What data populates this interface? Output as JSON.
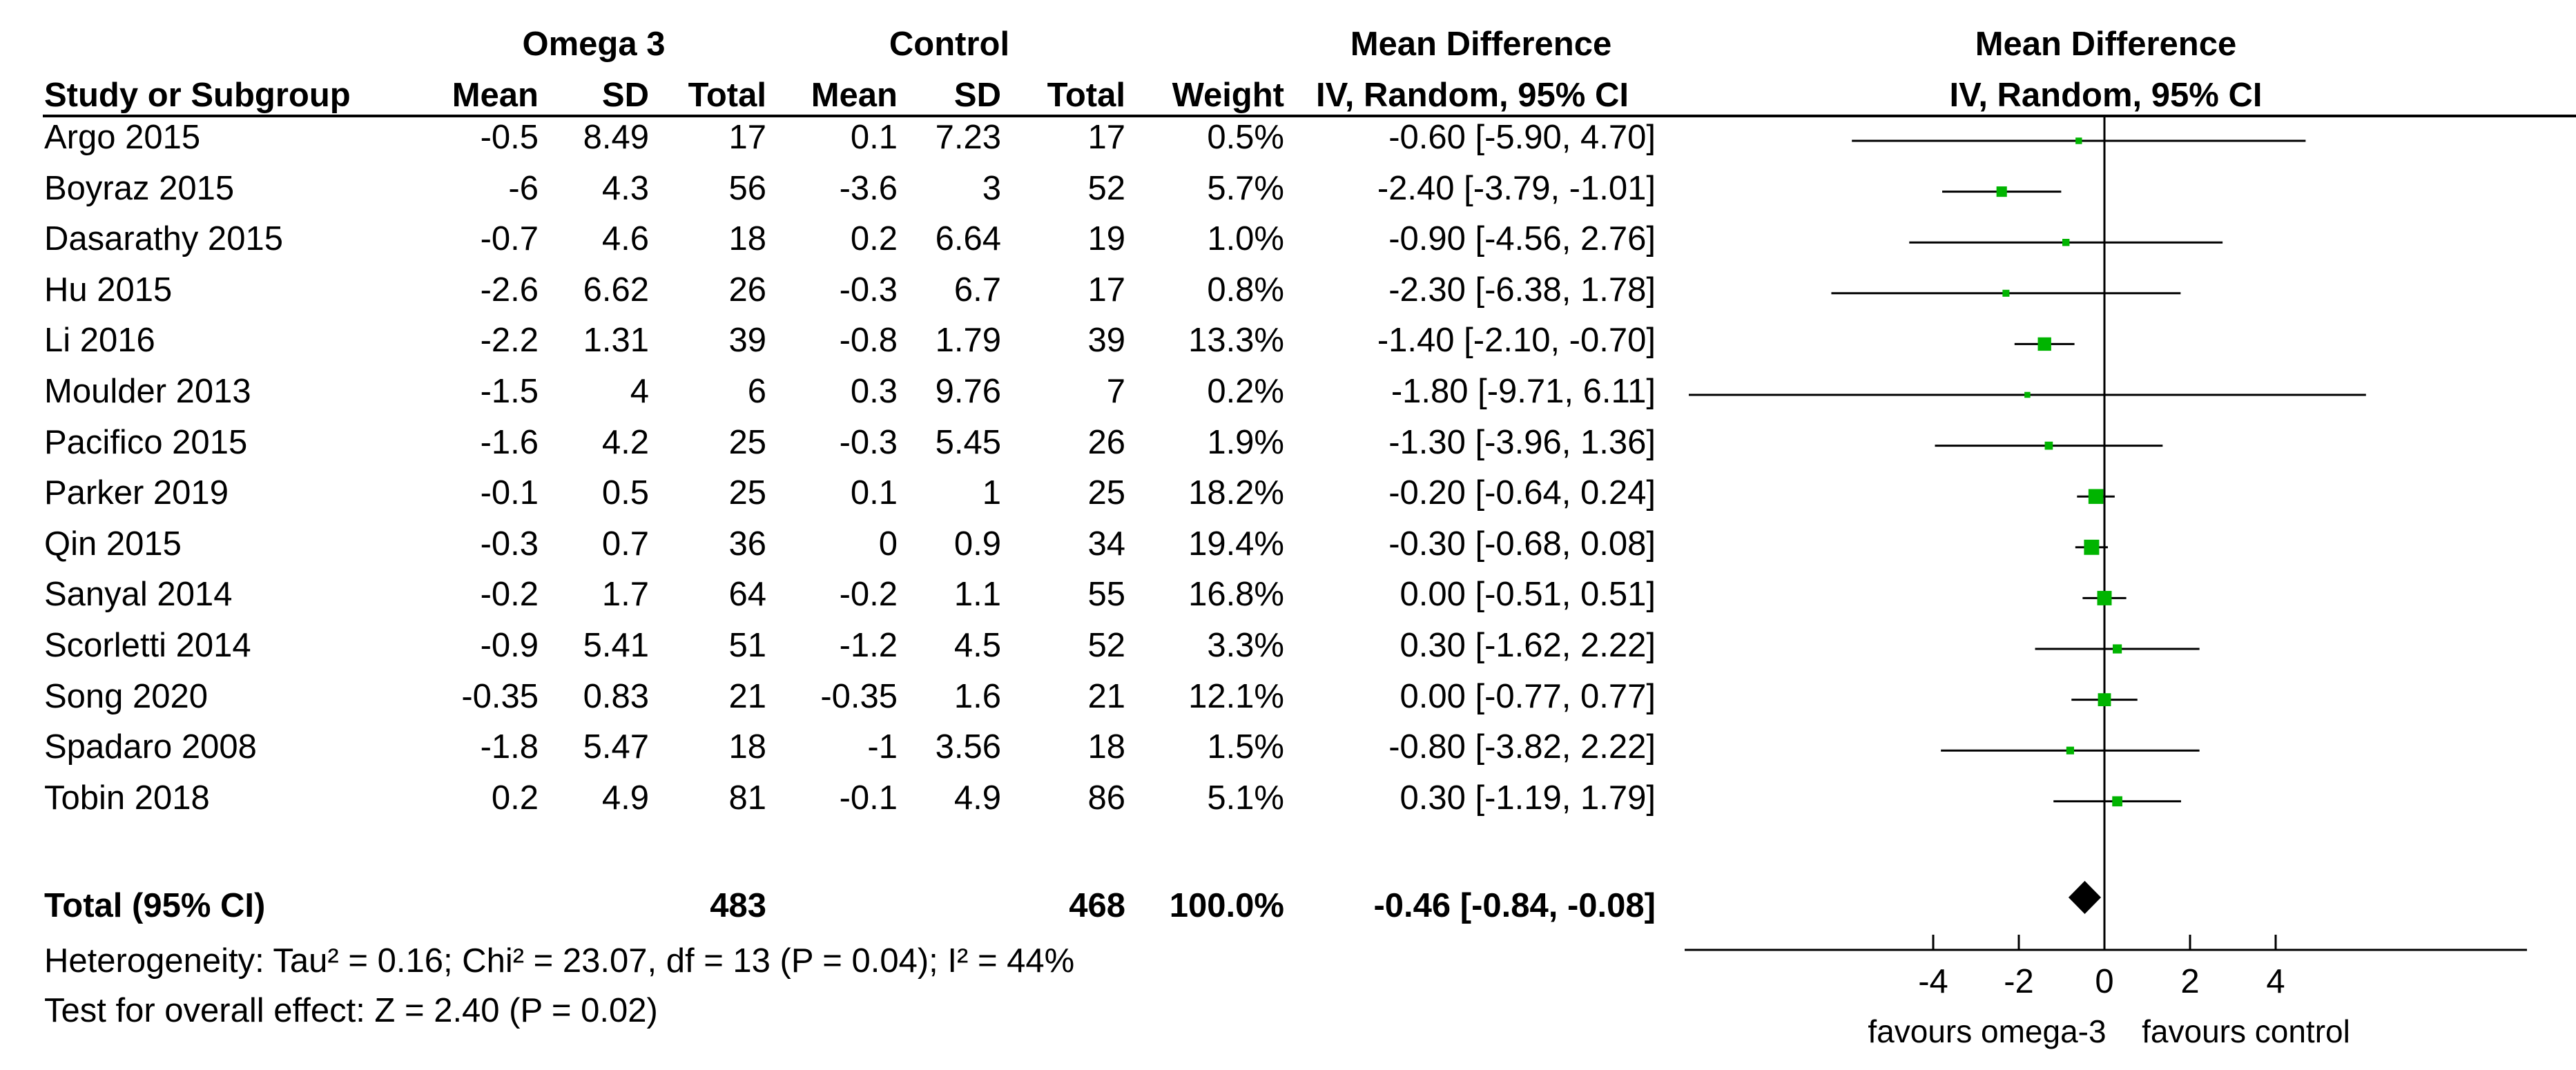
{
  "header": {
    "group1": "Omega 3",
    "group2": "Control",
    "effect_title": "Mean Difference",
    "plot_title": "Mean Difference",
    "plot_subtitle": "IV, Random, 95% CI",
    "col_study": "Study or Subgroup",
    "col_mean1": "Mean",
    "col_sd1": "SD",
    "col_total1": "Total",
    "col_mean2": "Mean",
    "col_sd2": "SD",
    "col_total2": "Total",
    "col_weight": "Weight",
    "col_ci": "IV, Random, 95% CI"
  },
  "studies": [
    {
      "name": "Argo 2015",
      "m1": "-0.5",
      "sd1": "8.49",
      "n1": "17",
      "m2": "0.1",
      "sd2": "7.23",
      "n2": "17",
      "weight": "0.5%",
      "ci": "-0.60 [-5.90, 4.70]"
    },
    {
      "name": "Boyraz 2015",
      "m1": "-6",
      "sd1": "4.3",
      "n1": "56",
      "m2": "-3.6",
      "sd2": "3",
      "n2": "52",
      "weight": "5.7%",
      "ci": "-2.40 [-3.79, -1.01]"
    },
    {
      "name": "Dasarathy 2015",
      "m1": "-0.7",
      "sd1": "4.6",
      "n1": "18",
      "m2": "0.2",
      "sd2": "6.64",
      "n2": "19",
      "weight": "1.0%",
      "ci": "-0.90 [-4.56, 2.76]"
    },
    {
      "name": "Hu 2015",
      "m1": "-2.6",
      "sd1": "6.62",
      "n1": "26",
      "m2": "-0.3",
      "sd2": "6.7",
      "n2": "17",
      "weight": "0.8%",
      "ci": "-2.30 [-6.38, 1.78]"
    },
    {
      "name": "Li 2016",
      "m1": "-2.2",
      "sd1": "1.31",
      "n1": "39",
      "m2": "-0.8",
      "sd2": "1.79",
      "n2": "39",
      "weight": "13.3%",
      "ci": "-1.40 [-2.10, -0.70]"
    },
    {
      "name": "Moulder 2013",
      "m1": "-1.5",
      "sd1": "4",
      "n1": "6",
      "m2": "0.3",
      "sd2": "9.76",
      "n2": "7",
      "weight": "0.2%",
      "ci": "-1.80 [-9.71, 6.11]"
    },
    {
      "name": "Pacifico 2015",
      "m1": "-1.6",
      "sd1": "4.2",
      "n1": "25",
      "m2": "-0.3",
      "sd2": "5.45",
      "n2": "26",
      "weight": "1.9%",
      "ci": "-1.30 [-3.96, 1.36]"
    },
    {
      "name": "Parker 2019",
      "m1": "-0.1",
      "sd1": "0.5",
      "n1": "25",
      "m2": "0.1",
      "sd2": "1",
      "n2": "25",
      "weight": "18.2%",
      "ci": "-0.20 [-0.64, 0.24]"
    },
    {
      "name": "Qin 2015",
      "m1": "-0.3",
      "sd1": "0.7",
      "n1": "36",
      "m2": "0",
      "sd2": "0.9",
      "n2": "34",
      "weight": "19.4%",
      "ci": "-0.30 [-0.68, 0.08]"
    },
    {
      "name": "Sanyal 2014",
      "m1": "-0.2",
      "sd1": "1.7",
      "n1": "64",
      "m2": "-0.2",
      "sd2": "1.1",
      "n2": "55",
      "weight": "16.8%",
      "ci": "0.00 [-0.51, 0.51]"
    },
    {
      "name": "Scorletti 2014",
      "m1": "-0.9",
      "sd1": "5.41",
      "n1": "51",
      "m2": "-1.2",
      "sd2": "4.5",
      "n2": "52",
      "weight": "3.3%",
      "ci": "0.30 [-1.62, 2.22]"
    },
    {
      "name": "Song 2020",
      "m1": "-0.35",
      "sd1": "0.83",
      "n1": "21",
      "m2": "-0.35",
      "sd2": "1.6",
      "n2": "21",
      "weight": "12.1%",
      "ci": "0.00 [-0.77, 0.77]"
    },
    {
      "name": "Spadaro 2008",
      "m1": "-1.8",
      "sd1": "5.47",
      "n1": "18",
      "m2": "-1",
      "sd2": "3.56",
      "n2": "18",
      "weight": "1.5%",
      "ci": "-0.80 [-3.82, 2.22]"
    },
    {
      "name": "Tobin 2018",
      "m1": "0.2",
      "sd1": "4.9",
      "n1": "81",
      "m2": "-0.1",
      "sd2": "4.9",
      "n2": "86",
      "weight": "5.1%",
      "ci": "0.30 [-1.19, 1.79]"
    }
  ],
  "total": {
    "label": "Total (95% CI)",
    "n1": "483",
    "n2": "468",
    "weight": "100.0%",
    "ci": "-0.46 [-0.84, -0.08]"
  },
  "footer": {
    "heterogeneity": "Heterogeneity: Tau² = 0.16; Chi² = 23.07, df = 13 (P = 0.04); I² = 44%",
    "overall_effect": "Test for overall effect: Z = 2.40 (P = 0.02)"
  },
  "colors": {
    "marker": "#00b400",
    "diamond": "#000000",
    "line": "#000000"
  },
  "chart_data": {
    "type": "forest",
    "title": "Mean Difference",
    "subtitle": "IV, Random, 95% CI",
    "xlim": [
      -10,
      10
    ],
    "xticks": [
      -4,
      -2,
      0,
      2,
      4
    ],
    "xtick_labels": [
      "-4",
      "-2",
      "0",
      "2",
      "4"
    ],
    "left_label": "favours omega-3",
    "right_label": "favours control",
    "series": [
      {
        "name": "Argo 2015",
        "est": -0.6,
        "lo": -5.9,
        "hi": 4.7,
        "weight": 0.5
      },
      {
        "name": "Boyraz 2015",
        "est": -2.4,
        "lo": -3.79,
        "hi": -1.01,
        "weight": 5.7
      },
      {
        "name": "Dasarathy 2015",
        "est": -0.9,
        "lo": -4.56,
        "hi": 2.76,
        "weight": 1.0
      },
      {
        "name": "Hu 2015",
        "est": -2.3,
        "lo": -6.38,
        "hi": 1.78,
        "weight": 0.8
      },
      {
        "name": "Li 2016",
        "est": -1.4,
        "lo": -2.1,
        "hi": -0.7,
        "weight": 13.3
      },
      {
        "name": "Moulder 2013",
        "est": -1.8,
        "lo": -9.71,
        "hi": 6.11,
        "weight": 0.2
      },
      {
        "name": "Pacifico 2015",
        "est": -1.3,
        "lo": -3.96,
        "hi": 1.36,
        "weight": 1.9
      },
      {
        "name": "Parker 2019",
        "est": -0.2,
        "lo": -0.64,
        "hi": 0.24,
        "weight": 18.2
      },
      {
        "name": "Qin 2015",
        "est": -0.3,
        "lo": -0.68,
        "hi": 0.08,
        "weight": 19.4
      },
      {
        "name": "Sanyal 2014",
        "est": 0.0,
        "lo": -0.51,
        "hi": 0.51,
        "weight": 16.8
      },
      {
        "name": "Scorletti 2014",
        "est": 0.3,
        "lo": -1.62,
        "hi": 2.22,
        "weight": 3.3
      },
      {
        "name": "Song 2020",
        "est": 0.0,
        "lo": -0.77,
        "hi": 0.77,
        "weight": 12.1
      },
      {
        "name": "Spadaro 2008",
        "est": -0.8,
        "lo": -3.82,
        "hi": 2.22,
        "weight": 1.5
      },
      {
        "name": "Tobin 2018",
        "est": 0.3,
        "lo": -1.19,
        "hi": 1.79,
        "weight": 5.1
      }
    ],
    "pooled": {
      "name": "Total (95% CI)",
      "est": -0.46,
      "lo": -0.84,
      "hi": -0.08
    }
  }
}
